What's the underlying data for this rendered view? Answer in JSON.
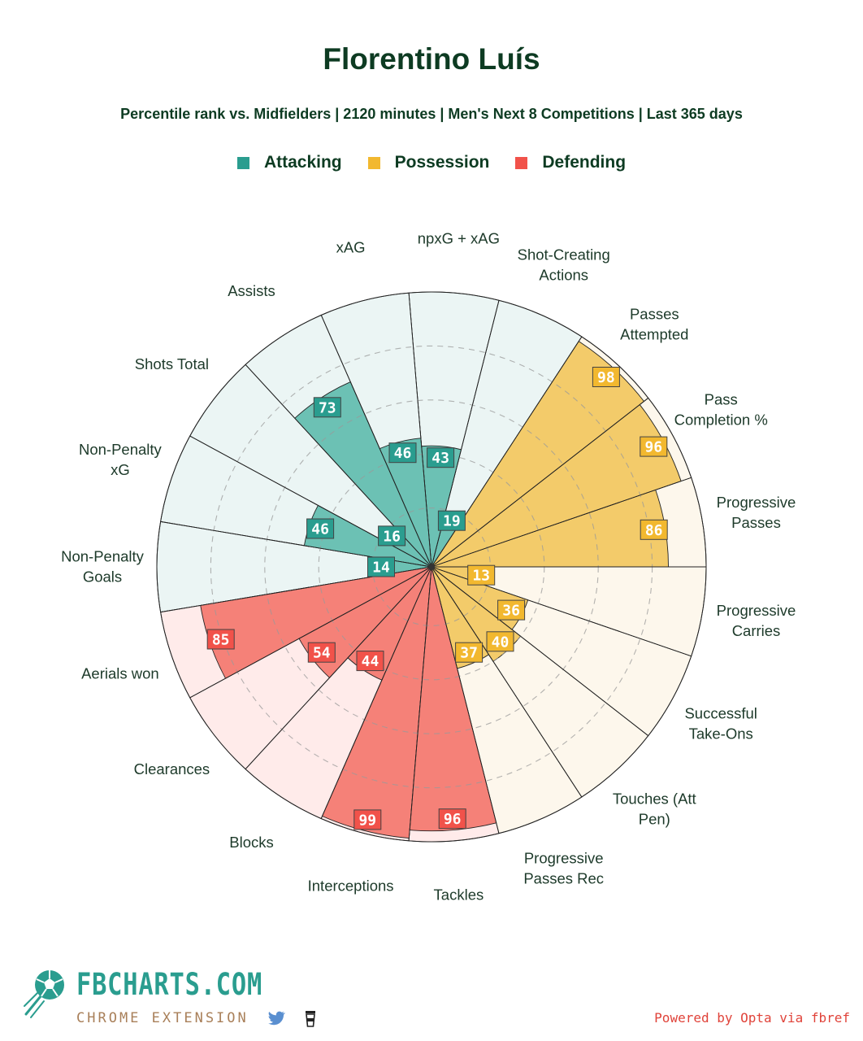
{
  "header": {
    "title": "Florentino Luís",
    "subtitle": "Percentile rank vs. Midfielders | 2120 minutes | Men's Next 8 Competitions | Last 365 days"
  },
  "legend": [
    {
      "label": "Attacking",
      "color": "#2a9d8f"
    },
    {
      "label": "Possession",
      "color": "#f2b82f"
    },
    {
      "label": "Defending",
      "color": "#f1524a"
    }
  ],
  "chart_data": {
    "type": "radar-bar",
    "title": "Florentino Luís",
    "value_range": [
      0,
      100
    ],
    "grid": true,
    "legend_position": "top",
    "categories": {
      "Attacking": {
        "fill": "#6cc1b4",
        "bg": "#ebf5f4",
        "label_bg": "#2a9d8f"
      },
      "Possession": {
        "fill": "#f3cb6a",
        "bg": "#fdf7ec",
        "label_bg": "#f2b82f"
      },
      "Defending": {
        "fill": "#f58178",
        "bg": "#ffebea",
        "label_bg": "#f1524a"
      }
    },
    "metrics": [
      {
        "name": "Progressive Passes",
        "group": "Possession",
        "value": 86
      },
      {
        "name": "Pass Completion %",
        "group": "Possession",
        "value": 96
      },
      {
        "name": "Passes Attempted",
        "group": "Possession",
        "value": 98
      },
      {
        "name": "Shot-Creating Actions",
        "group": "Attacking",
        "value": 19
      },
      {
        "name": "npxG + xAG",
        "group": "Attacking",
        "value": 43
      },
      {
        "name": "xAG",
        "group": "Attacking",
        "value": 46
      },
      {
        "name": "Assists",
        "group": "Attacking",
        "value": 73
      },
      {
        "name": "Shots Total",
        "group": "Attacking",
        "value": 16
      },
      {
        "name": "Non-Penalty xG",
        "group": "Attacking",
        "value": 46
      },
      {
        "name": "Non-Penalty Goals",
        "group": "Attacking",
        "value": 14
      },
      {
        "name": "Aerials won",
        "group": "Defending",
        "value": 85
      },
      {
        "name": "Clearances",
        "group": "Defending",
        "value": 54
      },
      {
        "name": "Blocks",
        "group": "Defending",
        "value": 44
      },
      {
        "name": "Interceptions",
        "group": "Defending",
        "value": 99
      },
      {
        "name": "Tackles",
        "group": "Defending",
        "value": 96
      },
      {
        "name": "Progressive Passes Rec",
        "group": "Possession",
        "value": 37
      },
      {
        "name": "Touches (Att Pen)",
        "group": "Possession",
        "value": 40
      },
      {
        "name": "Successful Take-Ons",
        "group": "Possession",
        "value": 36
      },
      {
        "name": "Progressive Carries",
        "group": "Possession",
        "value": 13
      }
    ],
    "axis_labels": [
      "Progressive\nPasses",
      "Pass\nCompletion %",
      "Passes\nAttempted",
      "Shot-Creating\nActions",
      "npxG + xAG",
      "xAG",
      "Assists",
      "Shots Total",
      "Non-Penalty\nxG",
      "Non-Penalty\nGoals",
      "Aerials won",
      "Clearances",
      "Blocks",
      "Interceptions",
      "Tackles",
      "Progressive\nPasses Rec",
      "Touches (Att\nPen)",
      "Successful\nTake-Ons",
      "Progressive\nCarries"
    ]
  },
  "branding": {
    "name": "FBCHARTS.COM",
    "sub": "CHROME EXTENSION",
    "icons": [
      "soccer-ball-icon",
      "twitter-bird-icon",
      "coffee-cup-icon"
    ],
    "powered_by": "Powered by Opta via fbref"
  }
}
